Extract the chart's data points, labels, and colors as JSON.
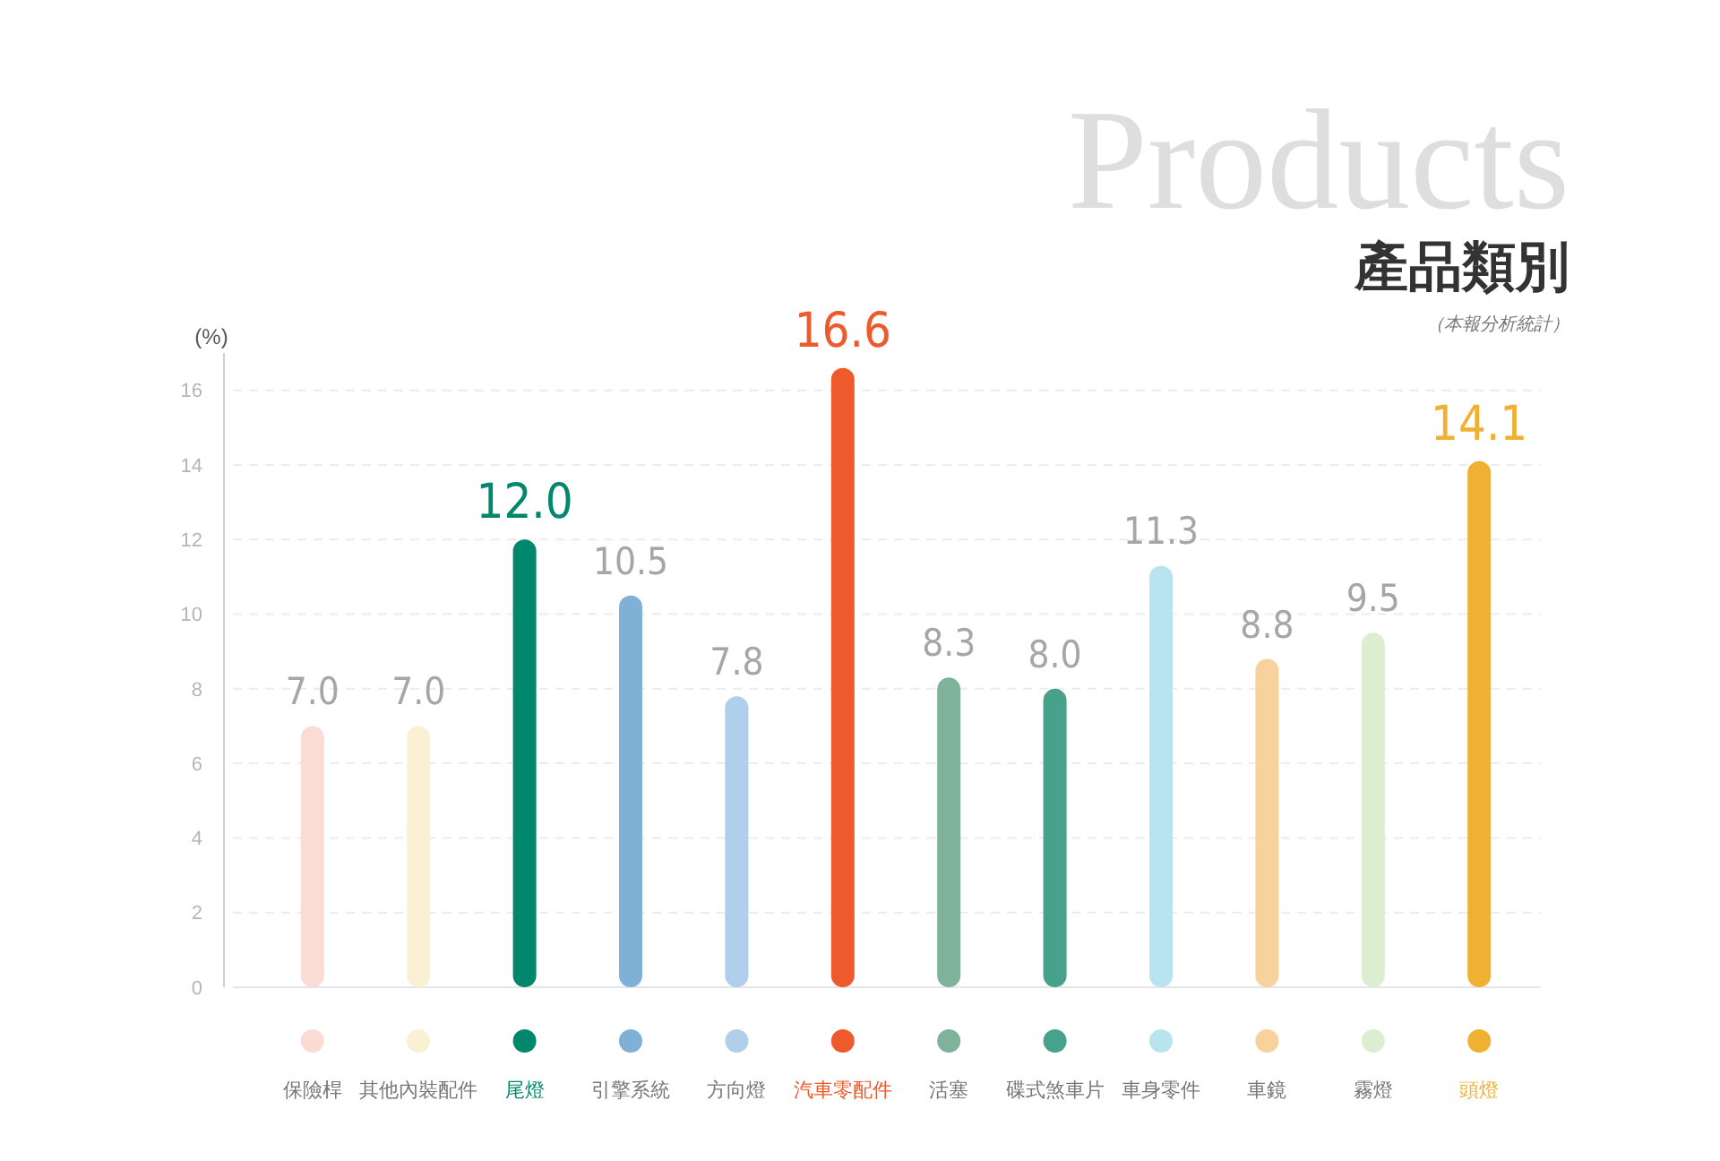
{
  "chart_data": {
    "type": "bar",
    "title": "Products",
    "subtitle": "產品類別",
    "annotations": [
      "（本報分析統計）"
    ],
    "ylabel": "(%)",
    "categories": [
      "保險桿",
      "其他內裝配件",
      "尾燈",
      "引擎系統",
      "方向燈",
      "汽車零配件",
      "活塞",
      "碟式煞車片",
      "車身零件",
      "車鏡",
      "霧燈",
      "頭燈"
    ],
    "values": [
      7.0,
      7.0,
      12.0,
      10.5,
      7.8,
      16.6,
      8.3,
      8.0,
      11.3,
      8.8,
      9.5,
      14.1
    ],
    "colors": [
      "#fbdcd5",
      "#faf0d4",
      "#00876c",
      "#7fb0d5",
      "#b0cfeb",
      "#ef5a2c",
      "#7fb29a",
      "#47a28c",
      "#b8e4f0",
      "#f7d29c",
      "#ddeed0",
      "#f0b032"
    ],
    "value_labels": [
      "7.0",
      "7.0",
      "12.0",
      "10.5",
      "7.8",
      "16.6",
      "8.3",
      "8.0",
      "11.3",
      "8.8",
      "9.5",
      "14.1"
    ],
    "ylim": [
      0,
      17
    ],
    "yticks": [
      0,
      2,
      4,
      6,
      8,
      10,
      12,
      14,
      16
    ],
    "grid": "y"
  }
}
